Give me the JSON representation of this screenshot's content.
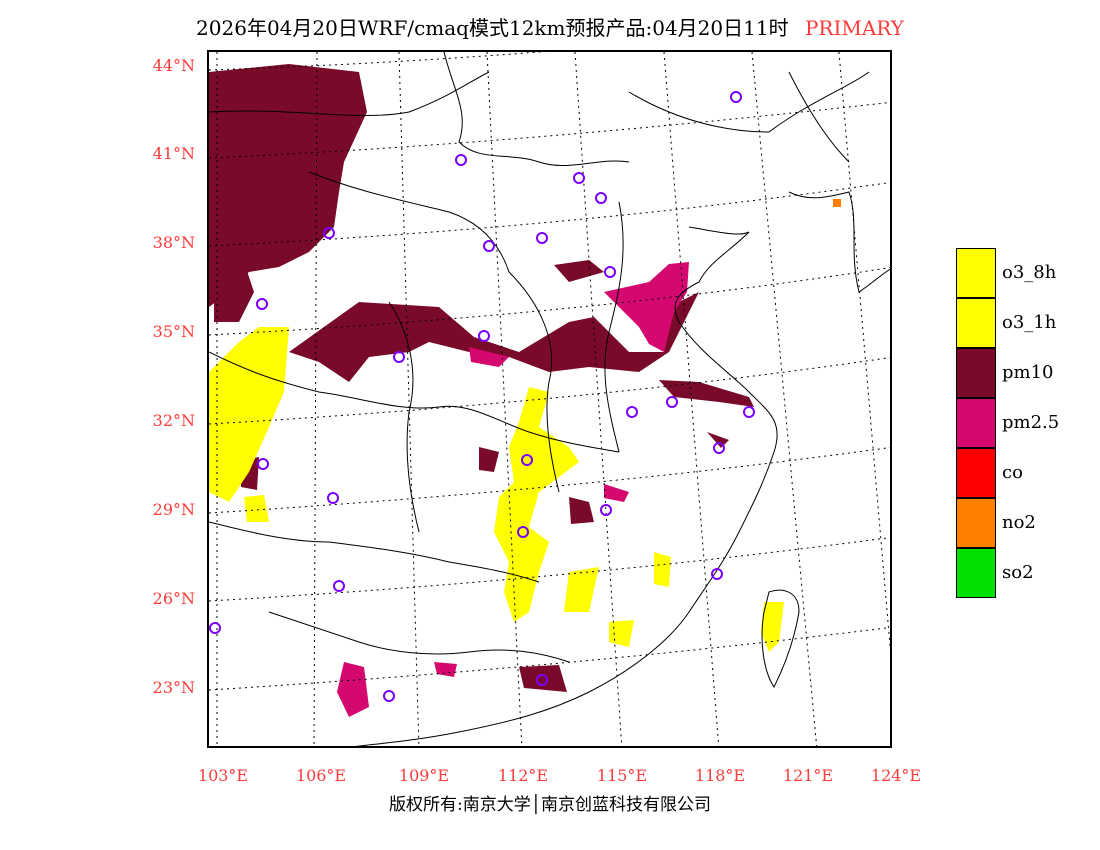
{
  "title": {
    "main": "2026年04月20日WRF/cmaq模式12km预报产品:04月20日11时",
    "tag": "PRIMARY"
  },
  "axes": {
    "lat_labels": [
      "44°N",
      "41°N",
      "38°N",
      "35°N",
      "32°N",
      "29°N",
      "26°N",
      "23°N"
    ],
    "lon_labels": [
      "103°E",
      "106°E",
      "109°E",
      "112°E",
      "115°E",
      "118°E",
      "121°E",
      "124°E"
    ],
    "lat_range": [
      21,
      44.5
    ],
    "lon_range": [
      102.7,
      124
    ]
  },
  "legend": {
    "items": [
      {
        "label": "o3_8h",
        "color": "#ffff00"
      },
      {
        "label": "o3_1h",
        "color": "#ffff00"
      },
      {
        "label": "pm10",
        "color": "#7a0a2a"
      },
      {
        "label": "pm2.5",
        "color": "#d4086e"
      },
      {
        "label": "co",
        "color": "#ff0000"
      },
      {
        "label": "no2",
        "color": "#ff7f00"
      },
      {
        "label": "so2",
        "color": "#00e000"
      }
    ]
  },
  "copyright": "版权所有:南京大学│南京创蓝科技有限公司"
}
